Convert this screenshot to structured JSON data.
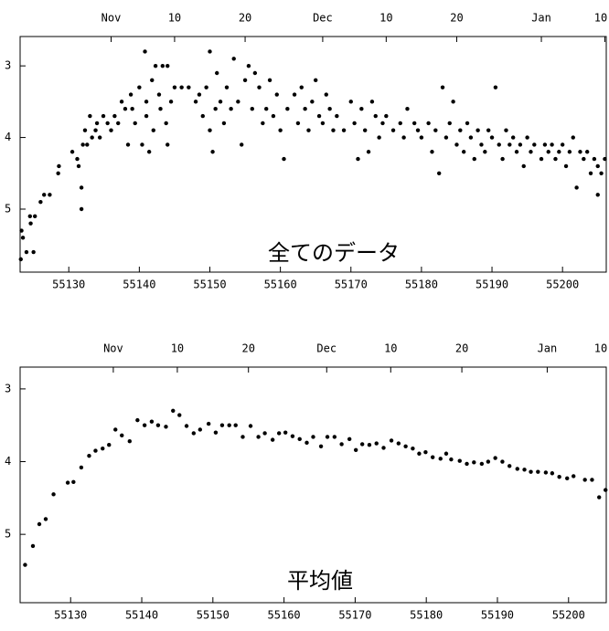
{
  "chart_data": [
    {
      "type": "scatter",
      "annotation": "全てのデータ",
      "color": "#000000",
      "xlim": [
        55123.1,
        55206.2
      ],
      "ylim": [
        5.88,
        2.59
      ],
      "xticks": [
        55130,
        55140,
        55150,
        55160,
        55170,
        55180,
        55190,
        55200
      ],
      "x2ticks": [
        {
          "value": 55136,
          "label": "Nov"
        },
        {
          "value": 55145,
          "label": "10"
        },
        {
          "value": 55155,
          "label": "20"
        },
        {
          "value": 55166,
          "label": "Dec"
        },
        {
          "value": 55175,
          "label": "10"
        },
        {
          "value": 55185,
          "label": "20"
        },
        {
          "value": 55197,
          "label": "Jan"
        },
        {
          "value": 55206,
          "label": "10"
        }
      ],
      "yticks": [
        3,
        4,
        5
      ],
      "x": [
        55123.2,
        55123.3,
        55123.5,
        55124,
        55124.5,
        55124.6,
        55125,
        55125.2,
        55126,
        55126.5,
        55127.3,
        55128.5,
        55128.6,
        55130.5,
        55131.2,
        55131.4,
        55131.8,
        55131.8,
        55132,
        55132.3,
        55132.6,
        55133,
        55133.3,
        55133.8,
        55134,
        55134.4,
        55134.9,
        55135.5,
        55136,
        55136.5,
        55137,
        55137.5,
        55138,
        55138.4,
        55138.8,
        55139,
        55139.4,
        55140,
        55140.4,
        55140.8,
        55141,
        55141,
        55141.4,
        55141.8,
        55142,
        55142.3,
        55142.8,
        55143,
        55143.3,
        55143.8,
        55144,
        55144,
        55144.5,
        55145,
        55146,
        55147,
        55148,
        55148.5,
        55149,
        55149.5,
        55150,
        55150,
        55150.4,
        55150.8,
        55151,
        55151.5,
        55152,
        55152.4,
        55153,
        55153.4,
        55154,
        55154.5,
        55155,
        55155.5,
        55156,
        55156.4,
        55157,
        55157.5,
        55158,
        55158.5,
        55159,
        55159.5,
        55160,
        55160.5,
        55161,
        55162,
        55162.5,
        55163,
        55163.5,
        55164,
        55164.5,
        55165,
        55165.5,
        55166,
        55166.5,
        55167,
        55167.5,
        55168,
        55169,
        55170,
        55170.5,
        55171,
        55171.5,
        55172,
        55172.5,
        55173,
        55173.5,
        55174,
        55174.5,
        55175,
        55176,
        55177,
        55177.5,
        55178,
        55179,
        55179.5,
        55180,
        55181,
        55181.5,
        55182,
        55182.5,
        55183,
        55183.5,
        55184,
        55184.5,
        55185,
        55185.5,
        55186,
        55186.5,
        55187,
        55187.5,
        55188,
        55188.5,
        55189,
        55189.5,
        55190,
        55190.5,
        55191,
        55191.5,
        55192,
        55192.5,
        55193,
        55193.5,
        55194,
        55194.5,
        55195,
        55195.5,
        55196,
        55197,
        55197.5,
        55198,
        55198.5,
        55199,
        55199.5,
        55200,
        55200.5,
        55201,
        55201.5,
        55202,
        55202.5,
        55203,
        55203.5,
        55204,
        55204.5,
        55205,
        55205,
        55205.5,
        55206
      ],
      "values": [
        5.7,
        5.3,
        5.4,
        5.6,
        5.1,
        5.2,
        5.6,
        5.1,
        4.9,
        4.8,
        4.8,
        4.5,
        4.4,
        4.2,
        4.3,
        4.4,
        4.7,
        5.0,
        4.1,
        3.9,
        4.1,
        3.7,
        4.0,
        3.9,
        3.8,
        4.0,
        3.7,
        3.8,
        3.9,
        3.7,
        3.8,
        3.5,
        3.6,
        4.1,
        3.4,
        3.6,
        3.8,
        3.3,
        4.1,
        2.8,
        3.5,
        3.7,
        4.2,
        3.2,
        3.9,
        3.0,
        3.4,
        3.6,
        3.0,
        3.8,
        3.0,
        4.1,
        3.5,
        3.3,
        3.3,
        3.3,
        3.5,
        3.4,
        3.7,
        3.3,
        2.8,
        3.9,
        4.2,
        3.6,
        3.1,
        3.5,
        3.8,
        3.3,
        3.6,
        2.9,
        3.5,
        4.1,
        3.2,
        3.0,
        3.6,
        3.1,
        3.3,
        3.8,
        3.6,
        3.2,
        3.7,
        3.4,
        3.9,
        4.3,
        3.6,
        3.4,
        3.8,
        3.3,
        3.6,
        3.9,
        3.5,
        3.2,
        3.7,
        3.8,
        3.4,
        3.6,
        3.9,
        3.7,
        3.9,
        3.5,
        3.8,
        4.3,
        3.6,
        3.9,
        4.2,
        3.5,
        3.7,
        4.0,
        3.8,
        3.7,
        3.9,
        3.8,
        4.0,
        3.6,
        3.8,
        3.9,
        4.0,
        3.8,
        4.2,
        3.9,
        4.5,
        3.3,
        4.0,
        3.8,
        3.5,
        4.1,
        3.9,
        4.2,
        3.8,
        4.0,
        4.3,
        3.9,
        4.1,
        4.2,
        3.9,
        4.0,
        3.3,
        4.1,
        4.3,
        3.9,
        4.1,
        4.0,
        4.2,
        4.1,
        4.4,
        4.0,
        4.2,
        4.1,
        4.3,
        4.1,
        4.2,
        4.1,
        4.3,
        4.2,
        4.1,
        4.4,
        4.2,
        4.0,
        4.7,
        4.2,
        4.3,
        4.2,
        4.5,
        4.3,
        4.8,
        4.4,
        4.5,
        4.3
      ]
    },
    {
      "type": "scatter",
      "annotation": "平均値",
      "color": "#000000",
      "xlim": [
        55122.9,
        55205.3
      ],
      "ylim": [
        5.94,
        2.7
      ],
      "xticks": [
        55130,
        55140,
        55150,
        55160,
        55170,
        55180,
        55190,
        55200
      ],
      "x2ticks": [
        {
          "value": 55136,
          "label": "Nov"
        },
        {
          "value": 55145,
          "label": "10"
        },
        {
          "value": 55155,
          "label": "20"
        },
        {
          "value": 55166,
          "label": "Dec"
        },
        {
          "value": 55175,
          "label": "10"
        },
        {
          "value": 55185,
          "label": "20"
        },
        {
          "value": 55197,
          "label": "Jan"
        },
        {
          "value": 55206,
          "label": "10"
        }
      ],
      "yticks": [
        3,
        4,
        5
      ],
      "x": [
        55123.6,
        55124.7,
        55125.6,
        55126.5,
        55127.6,
        55129.6,
        55130.4,
        55131.5,
        55132.6,
        55133.5,
        55134.5,
        55135.4,
        55136.3,
        55137.2,
        55138.3,
        55139.4,
        55140.4,
        55141.4,
        55142.3,
        55143.4,
        55144.4,
        55145.3,
        55146.3,
        55147.3,
        55148.2,
        55149.4,
        55150.4,
        55151.3,
        55152.3,
        55153.2,
        55154.2,
        55155.3,
        55156.4,
        55157.3,
        55158.4,
        55159.3,
        55160.2,
        55161.2,
        55162.2,
        55163.2,
        55164.1,
        55165.2,
        55166.1,
        55167.1,
        55168.1,
        55169.2,
        55170.1,
        55171.0,
        55172.0,
        55173.0,
        55174.0,
        55175.1,
        55176.1,
        55177.1,
        55178.1,
        55179.0,
        55179.9,
        55180.9,
        55182.0,
        55182.8,
        55183.5,
        55184.7,
        55185.7,
        55186.7,
        55187.8,
        55188.7,
        55189.7,
        55190.7,
        55191.7,
        55192.8,
        55193.8,
        55194.7,
        55195.7,
        55196.8,
        55197.7,
        55198.7,
        55199.8,
        55200.7,
        55202.3,
        55203.3,
        55204.3,
        55205.2
      ],
      "values": [
        5.42,
        5.16,
        4.86,
        4.79,
        4.45,
        4.29,
        4.28,
        4.08,
        3.92,
        3.85,
        3.82,
        3.77,
        3.56,
        3.64,
        3.72,
        3.43,
        3.5,
        3.45,
        3.5,
        3.52,
        3.3,
        3.36,
        3.51,
        3.61,
        3.56,
        3.48,
        3.6,
        3.5,
        3.5,
        3.5,
        3.66,
        3.51,
        3.66,
        3.61,
        3.7,
        3.61,
        3.6,
        3.65,
        3.69,
        3.74,
        3.66,
        3.79,
        3.66,
        3.66,
        3.76,
        3.69,
        3.84,
        3.76,
        3.77,
        3.75,
        3.81,
        3.71,
        3.75,
        3.79,
        3.82,
        3.89,
        3.87,
        3.94,
        3.96,
        3.89,
        3.97,
        3.99,
        4.03,
        4.01,
        4.03,
        4.0,
        3.95,
        4.0,
        4.06,
        4.1,
        4.11,
        4.14,
        4.14,
        4.15,
        4.16,
        4.21,
        4.23,
        4.2,
        4.25,
        4.25,
        4.49,
        4.39
      ]
    }
  ]
}
